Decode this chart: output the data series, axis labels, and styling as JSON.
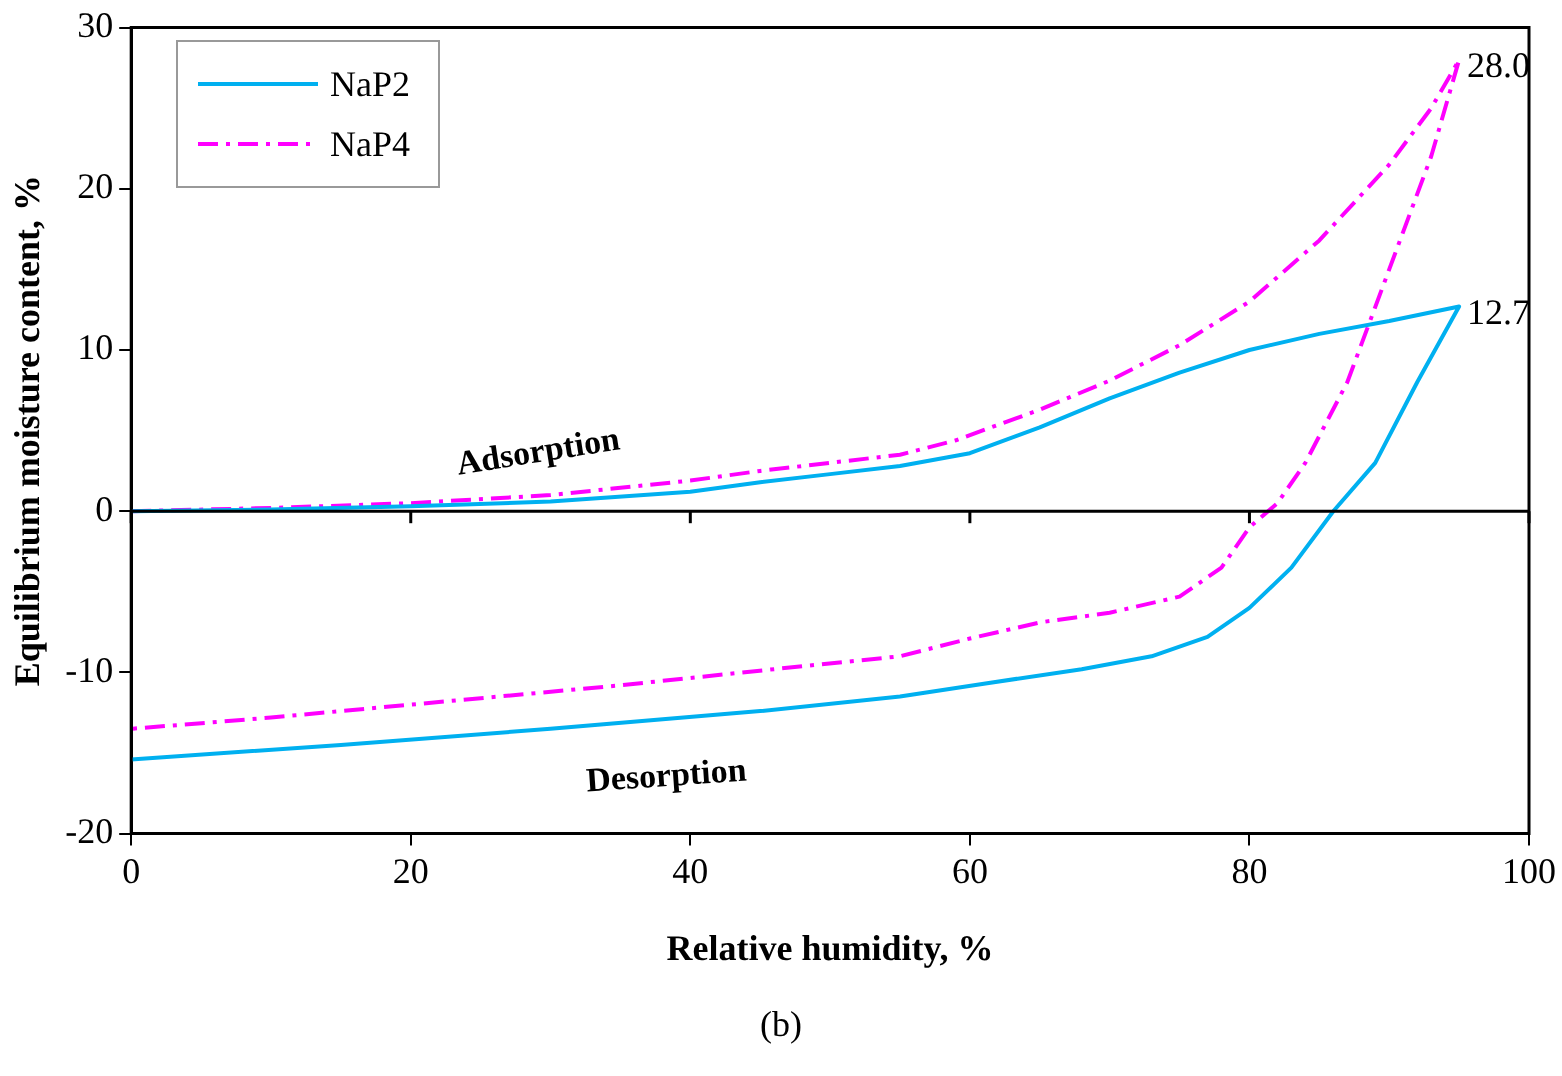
{
  "chart_data": {
    "type": "line",
    "xlabel": "Relative humidity, %",
    "ylabel": "Equilibrium moisture content, %",
    "xlim": [
      0,
      100
    ],
    "xticks": [
      0,
      20,
      40,
      60,
      80,
      100
    ],
    "ylim": [
      -20,
      30
    ],
    "yticks": [
      -20,
      -10,
      0,
      10,
      20,
      30
    ],
    "grid": false,
    "legend": "top left",
    "marker": "none",
    "series": [
      {
        "name": "NaP2",
        "color": "#00b0f0",
        "line_style": "solid",
        "x": [
          0,
          10,
          20,
          30,
          40,
          45,
          50,
          55,
          60,
          65,
          70,
          75,
          80,
          85,
          90,
          95,
          92,
          89,
          86,
          83,
          80,
          77,
          73,
          68,
          61,
          55,
          45,
          30,
          15,
          0
        ],
        "values": [
          0,
          0.1,
          0.3,
          0.6,
          1.2,
          1.8,
          2.3,
          2.8,
          3.6,
          5.2,
          7.0,
          8.6,
          10.0,
          11.0,
          11.8,
          12.7,
          8,
          3,
          0,
          -3.5,
          -6,
          -7.8,
          -9,
          -9.8,
          -10.7,
          -11.5,
          -12.4,
          -13.5,
          -14.5,
          -15.4
        ]
      },
      {
        "name": "NaP4",
        "color": "#ff00ff",
        "line_style": "dashed",
        "x": [
          0,
          10,
          20,
          30,
          40,
          45,
          50,
          55,
          59,
          65,
          70,
          75,
          80,
          85,
          90,
          93,
          95,
          93,
          90,
          87,
          84,
          82,
          80,
          78,
          75,
          70,
          65,
          60,
          55,
          46,
          35,
          20,
          10,
          0
        ],
        "values": [
          0,
          0.2,
          0.5,
          1.0,
          1.9,
          2.5,
          3.0,
          3.5,
          4.4,
          6.3,
          8.1,
          10.3,
          13.0,
          16.8,
          21.5,
          25,
          28.0,
          22,
          15,
          8,
          3,
          0.5,
          -1,
          -3.5,
          -5.3,
          -6.3,
          -6.9,
          -7.9,
          -9.0,
          -9.8,
          -10.8,
          -12.0,
          -12.8,
          -13.5
        ]
      }
    ],
    "ref_lines": [
      {
        "axis": "y",
        "value": 0,
        "color": "#000000"
      }
    ],
    "annotations": [
      {
        "text": "28.0",
        "x": 95,
        "y": 28.0
      },
      {
        "text": "12.7",
        "x": 95,
        "y": 12.7
      },
      "Adsorption",
      "Desorption",
      "(b)"
    ]
  }
}
